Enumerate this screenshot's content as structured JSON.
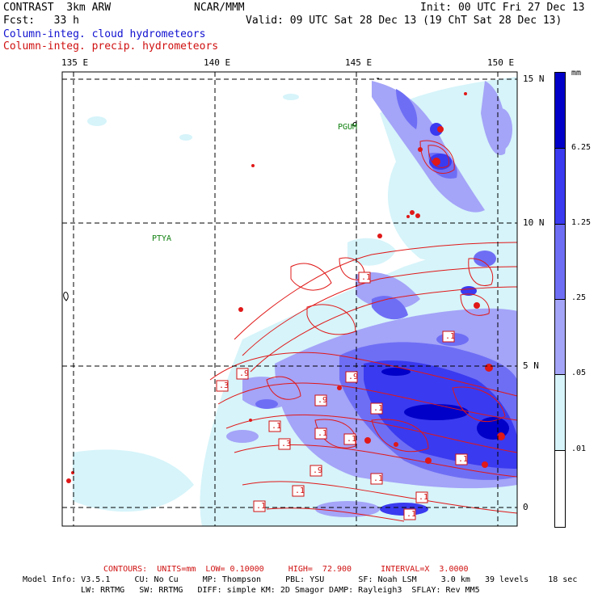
{
  "header": {
    "model": "CONTRAST  3km ARW",
    "org": "NCAR/MMM",
    "init": "Init: 00 UTC Fri 27 Dec 13",
    "fcst": "Fcst:   33 h",
    "valid": "Valid: 09 UTC Sat 28 Dec 13 (19 ChT Sat 28 Dec 13)",
    "field_cloud": "Column-integ. cloud hydrometeors",
    "field_precip": "Column-integ. precip. hydrometeors"
  },
  "map": {
    "lon_labels": [
      "135 E",
      "140 E",
      "145 E",
      "150 E"
    ],
    "lat_labels": [
      "15 N",
      "10 N",
      "5 N",
      "0"
    ],
    "places": [
      "PGUM",
      "PTYA"
    ],
    "contour_labels": [
      ".9",
      ".3",
      ".9",
      ".9",
      ".1",
      ".1",
      ".3",
      ".1",
      ".1",
      ".9",
      ".1",
      ".1",
      ".1",
      ".1",
      ".1",
      ".1",
      ".1",
      ".1"
    ]
  },
  "colorbar": {
    "unit": "mm",
    "ticks": [
      "6.25",
      "1.25",
      ".25",
      ".05",
      ".01"
    ],
    "colors": [
      "#0000c8",
      "#3a3af0",
      "#6e6ef5",
      "#a4a4f8",
      "#d6f4fa",
      "#ffffff"
    ]
  },
  "footer": {
    "contours": "CONTOURS:  UNITS=mm  LOW= 0.10000     HIGH=  72.900      INTERVAL=X  3.0000",
    "model_info": "Model Info: V3.5.1     CU: No Cu     MP: Thompson     PBL: YSU       SF: Noah LSM     3.0 km   39 levels    18 sec",
    "model_info2": "LW: RRTMG   SW: RRTMG   DIFF: simple KM: 2D Smagor DAMP: Rayleigh3  SFLAY: Rev MM5"
  }
}
